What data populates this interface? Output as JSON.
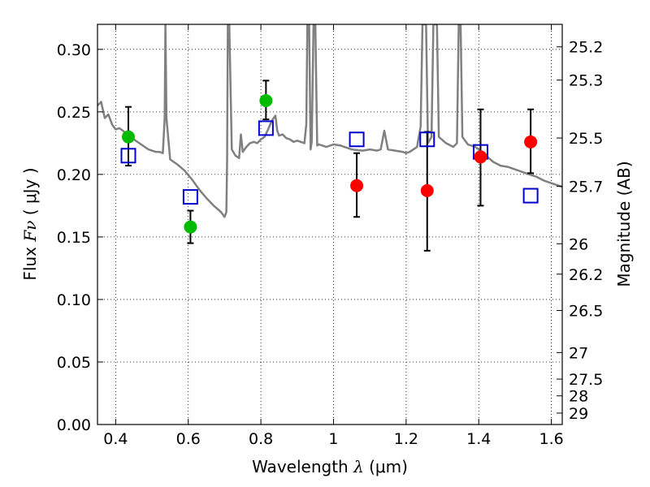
{
  "chart_data": {
    "type": "scatter",
    "title": "",
    "xlabel": {
      "prefix": "Wavelength  ",
      "symbol": "λ",
      "unit": " (μm)"
    },
    "ylabel": {
      "prefix": "Flux  ",
      "symbol": "Fν",
      "unit": "  ( μJy )"
    },
    "y2label": "Magnitude (AB)",
    "xlim": [
      0.35,
      1.63
    ],
    "ylim": [
      0.0,
      0.32
    ],
    "grid": true,
    "x_ticks": [
      {
        "value": 0.4,
        "label": "0.4"
      },
      {
        "value": 0.6,
        "label": "0.6"
      },
      {
        "value": 0.8,
        "label": "0.8"
      },
      {
        "value": 1.0,
        "label": "1"
      },
      {
        "value": 1.2,
        "label": "1.2"
      },
      {
        "value": 1.4,
        "label": "1.4"
      },
      {
        "value": 1.6,
        "label": "1.6"
      }
    ],
    "y_ticks": [
      {
        "value": 0.0,
        "label": "0.00"
      },
      {
        "value": 0.05,
        "label": "0.05"
      },
      {
        "value": 0.1,
        "label": "0.10"
      },
      {
        "value": 0.15,
        "label": "0.15"
      },
      {
        "value": 0.2,
        "label": "0.20"
      },
      {
        "value": 0.25,
        "label": "0.25"
      },
      {
        "value": 0.3,
        "label": "0.30"
      }
    ],
    "y2_ticks": [
      {
        "value": 25.2,
        "label": "25.2"
      },
      {
        "value": 25.3,
        "label": "25.3"
      },
      {
        "value": 25.5,
        "label": "25.5"
      },
      {
        "value": 25.7,
        "label": "25.7"
      },
      {
        "value": 26,
        "label": "26"
      },
      {
        "value": 26.2,
        "label": "26.2"
      },
      {
        "value": 26.5,
        "label": "26.5"
      },
      {
        "value": 27,
        "label": "27"
      },
      {
        "value": 27.5,
        "label": "27.5"
      },
      {
        "value": 28,
        "label": "28"
      },
      {
        "value": 29,
        "label": "29"
      }
    ],
    "series": [
      {
        "name": "model spectrum",
        "kind": "line",
        "color": "#808080",
        "points": [
          [
            0.35,
            0.255
          ],
          [
            0.36,
            0.258
          ],
          [
            0.37,
            0.245
          ],
          [
            0.38,
            0.248
          ],
          [
            0.39,
            0.24
          ],
          [
            0.4,
            0.236
          ],
          [
            0.41,
            0.237
          ],
          [
            0.42,
            0.235
          ],
          [
            0.43,
            0.232
          ],
          [
            0.44,
            0.23
          ],
          [
            0.45,
            0.228
          ],
          [
            0.46,
            0.226
          ],
          [
            0.47,
            0.224
          ],
          [
            0.48,
            0.222
          ],
          [
            0.49,
            0.22
          ],
          [
            0.5,
            0.219
          ],
          [
            0.51,
            0.218
          ],
          [
            0.52,
            0.218
          ],
          [
            0.53,
            0.217
          ],
          [
            0.535,
            0.245
          ],
          [
            0.537,
            0.32
          ],
          [
            0.54,
            0.245
          ],
          [
            0.55,
            0.212
          ],
          [
            0.57,
            0.208
          ],
          [
            0.59,
            0.203
          ],
          [
            0.61,
            0.196
          ],
          [
            0.63,
            0.188
          ],
          [
            0.65,
            0.181
          ],
          [
            0.67,
            0.175
          ],
          [
            0.69,
            0.17
          ],
          [
            0.7,
            0.166
          ],
          [
            0.705,
            0.17
          ],
          [
            0.707,
            0.21
          ],
          [
            0.709,
            0.32
          ],
          [
            0.713,
            0.32
          ],
          [
            0.72,
            0.22
          ],
          [
            0.73,
            0.215
          ],
          [
            0.74,
            0.213
          ],
          [
            0.745,
            0.232
          ],
          [
            0.75,
            0.218
          ],
          [
            0.76,
            0.222
          ],
          [
            0.77,
            0.225
          ],
          [
            0.78,
            0.226
          ],
          [
            0.79,
            0.225
          ],
          [
            0.8,
            0.228
          ],
          [
            0.81,
            0.23
          ],
          [
            0.82,
            0.236
          ],
          [
            0.83,
            0.243
          ],
          [
            0.84,
            0.247
          ],
          [
            0.845,
            0.235
          ],
          [
            0.85,
            0.231
          ],
          [
            0.86,
            0.232
          ],
          [
            0.87,
            0.229
          ],
          [
            0.88,
            0.228
          ],
          [
            0.89,
            0.226
          ],
          [
            0.9,
            0.227
          ],
          [
            0.91,
            0.226
          ],
          [
            0.92,
            0.225
          ],
          [
            0.925,
            0.24
          ],
          [
            0.928,
            0.32
          ],
          [
            0.933,
            0.32
          ],
          [
            0.937,
            0.22
          ],
          [
            0.94,
            0.226
          ],
          [
            0.945,
            0.32
          ],
          [
            0.95,
            0.32
          ],
          [
            0.955,
            0.223
          ],
          [
            0.96,
            0.224
          ],
          [
            0.97,
            0.223
          ],
          [
            0.98,
            0.222
          ],
          [
            1.0,
            0.224
          ],
          [
            1.02,
            0.223
          ],
          [
            1.05,
            0.22
          ],
          [
            1.08,
            0.219
          ],
          [
            1.1,
            0.22
          ],
          [
            1.12,
            0.219
          ],
          [
            1.13,
            0.22
          ],
          [
            1.14,
            0.235
          ],
          [
            1.15,
            0.22
          ],
          [
            1.17,
            0.219
          ],
          [
            1.19,
            0.218
          ],
          [
            1.2,
            0.217
          ],
          [
            1.21,
            0.218
          ],
          [
            1.22,
            0.22
          ],
          [
            1.23,
            0.222
          ],
          [
            1.24,
            0.238
          ],
          [
            1.245,
            0.32
          ],
          [
            1.255,
            0.32
          ],
          [
            1.26,
            0.225
          ],
          [
            1.27,
            0.23
          ],
          [
            1.275,
            0.32
          ],
          [
            1.285,
            0.32
          ],
          [
            1.29,
            0.23
          ],
          [
            1.31,
            0.225
          ],
          [
            1.33,
            0.222
          ],
          [
            1.34,
            0.225
          ],
          [
            1.345,
            0.32
          ],
          [
            1.35,
            0.32
          ],
          [
            1.355,
            0.23
          ],
          [
            1.37,
            0.224
          ],
          [
            1.39,
            0.222
          ],
          [
            1.4,
            0.22
          ],
          [
            1.42,
            0.215
          ],
          [
            1.44,
            0.21
          ],
          [
            1.46,
            0.207
          ],
          [
            1.48,
            0.206
          ],
          [
            1.5,
            0.204
          ],
          [
            1.52,
            0.202
          ],
          [
            1.54,
            0.2
          ],
          [
            1.56,
            0.198
          ],
          [
            1.58,
            0.195
          ],
          [
            1.6,
            0.193
          ],
          [
            1.62,
            0.191
          ],
          [
            1.63,
            0.19
          ]
        ]
      },
      {
        "name": "green measurements",
        "kind": "circle",
        "color": "#00bb00",
        "points": [
          {
            "x": 0.435,
            "y": 0.23,
            "ylo": 0.207,
            "yhi": 0.254
          },
          {
            "x": 0.606,
            "y": 0.158,
            "ylo": 0.145,
            "yhi": 0.171
          },
          {
            "x": 0.814,
            "y": 0.259,
            "ylo": 0.244,
            "yhi": 0.275
          }
        ]
      },
      {
        "name": "red measurements",
        "kind": "circle",
        "color": "#ff0000",
        "points": [
          {
            "x": 1.064,
            "y": 0.191,
            "ylo": 0.166,
            "yhi": 0.217
          },
          {
            "x": 1.258,
            "y": 0.187,
            "ylo": 0.139,
            "yhi": 0.234
          },
          {
            "x": 1.405,
            "y": 0.214,
            "ylo": 0.175,
            "yhi": 0.252
          },
          {
            "x": 1.543,
            "y": 0.226,
            "ylo": 0.201,
            "yhi": 0.252
          }
        ]
      },
      {
        "name": "model band fluxes",
        "kind": "square",
        "color": "#0000cc",
        "points": [
          {
            "x": 0.435,
            "y": 0.215
          },
          {
            "x": 0.606,
            "y": 0.182
          },
          {
            "x": 0.814,
            "y": 0.237
          },
          {
            "x": 1.064,
            "y": 0.228
          },
          {
            "x": 1.258,
            "y": 0.228
          },
          {
            "x": 1.405,
            "y": 0.218
          },
          {
            "x": 1.543,
            "y": 0.183
          }
        ]
      }
    ]
  }
}
